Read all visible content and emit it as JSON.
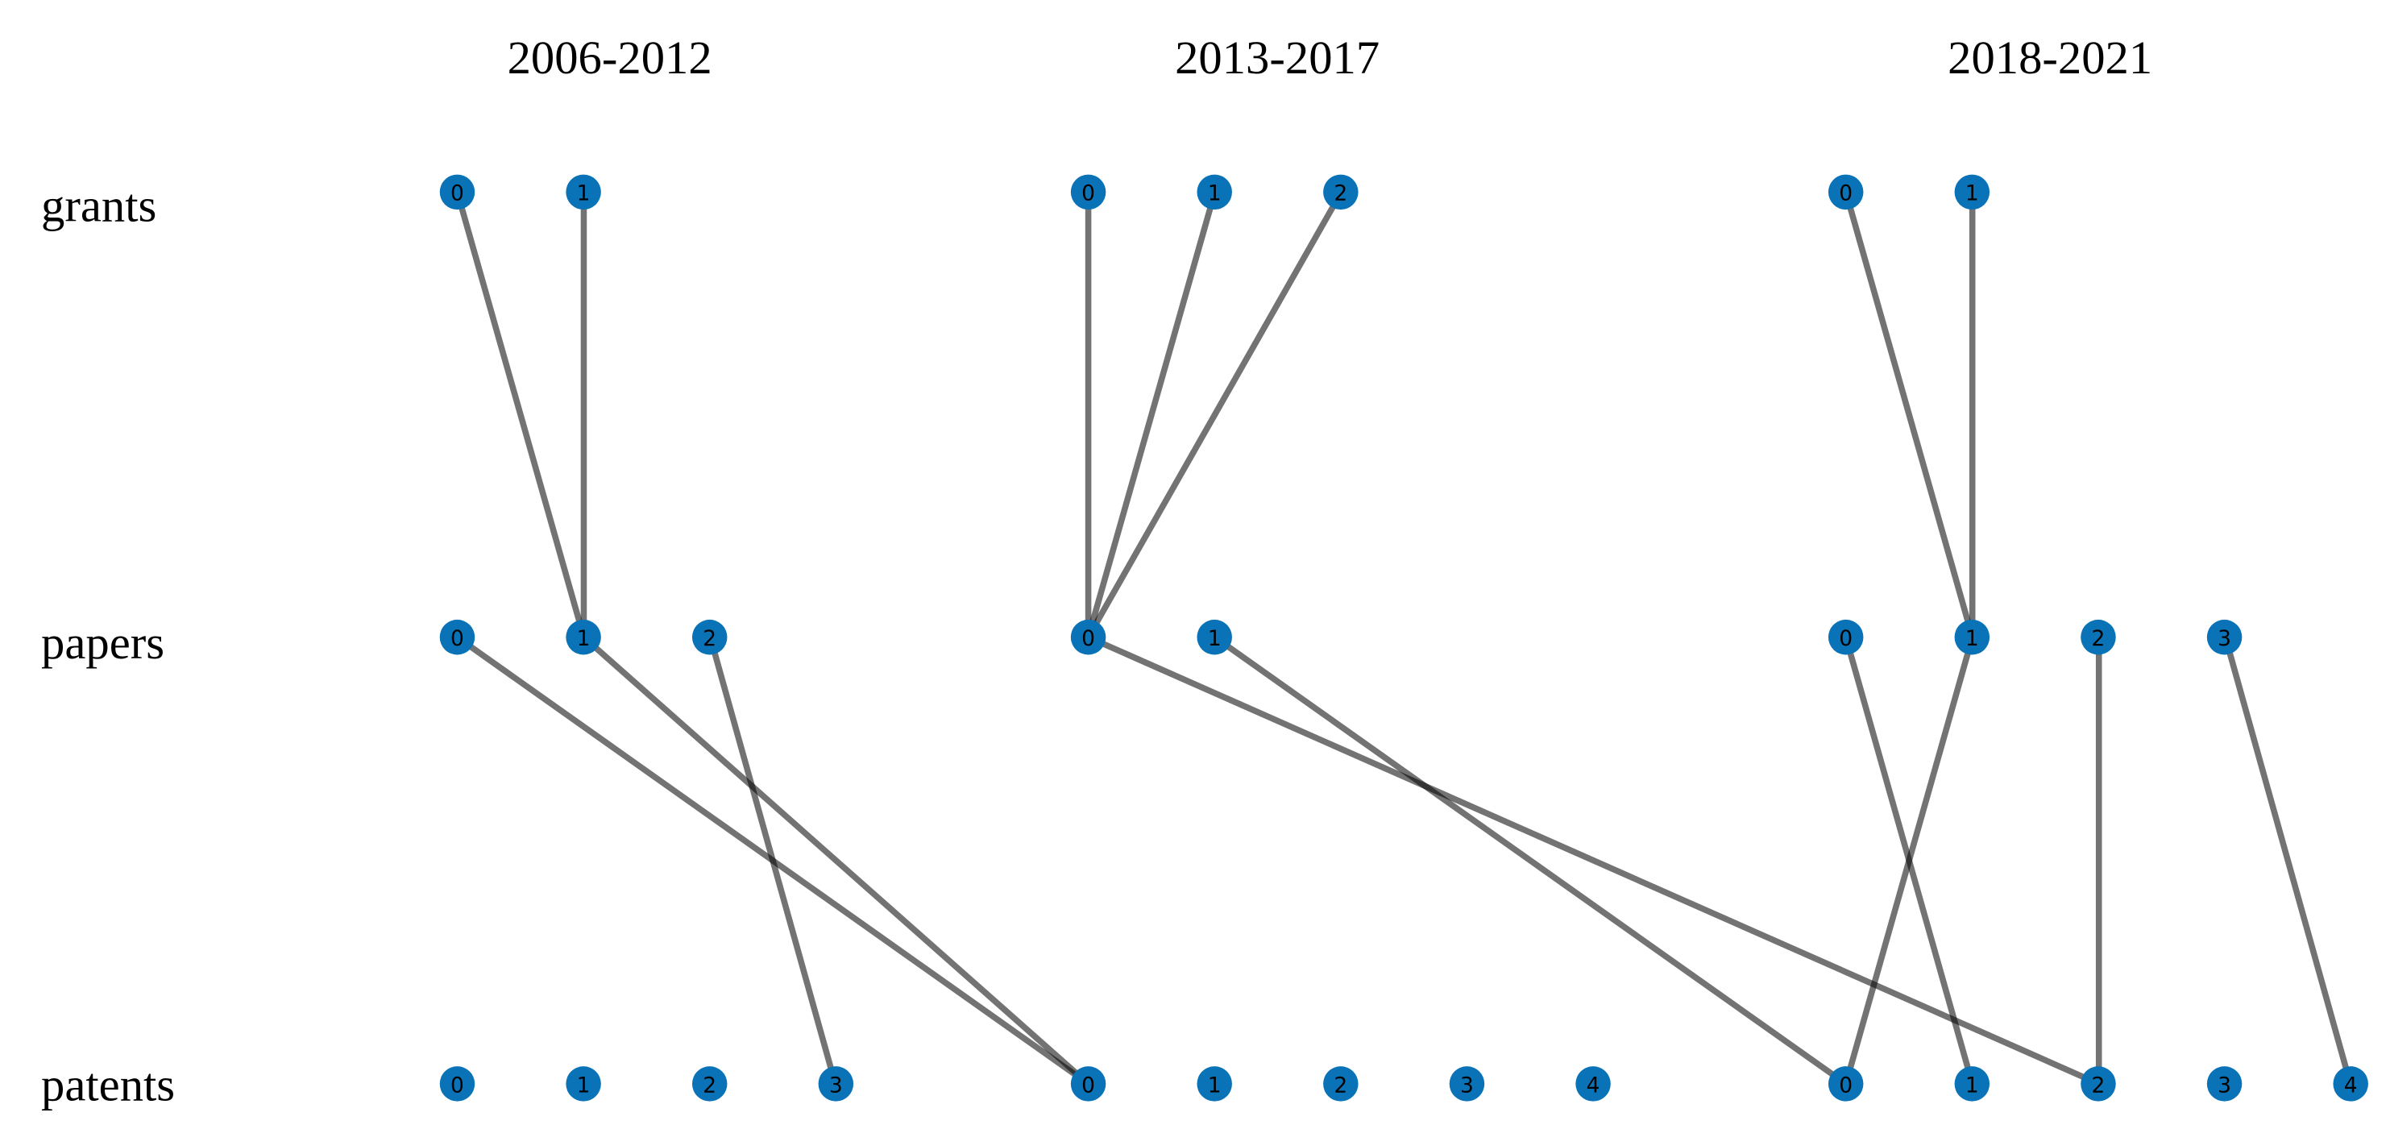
{
  "periods": [
    {
      "title": "2006-2012",
      "grants": [
        "0",
        "1"
      ],
      "papers": [
        "0",
        "1",
        "2"
      ],
      "patents": [
        "0",
        "1",
        "2",
        "3"
      ]
    },
    {
      "title": "2013-2017",
      "grants": [
        "0",
        "1",
        "2"
      ],
      "papers": [
        "0",
        "1"
      ],
      "patents": [
        "0",
        "1",
        "2",
        "3",
        "4"
      ]
    },
    {
      "title": "2018-2021",
      "grants": [
        "0",
        "1"
      ],
      "papers": [
        "0",
        "1",
        "2",
        "3"
      ],
      "patents": [
        "0",
        "1",
        "2",
        "3",
        "4"
      ]
    }
  ],
  "row_labels": [
    "grants",
    "papers",
    "patents"
  ]
}
